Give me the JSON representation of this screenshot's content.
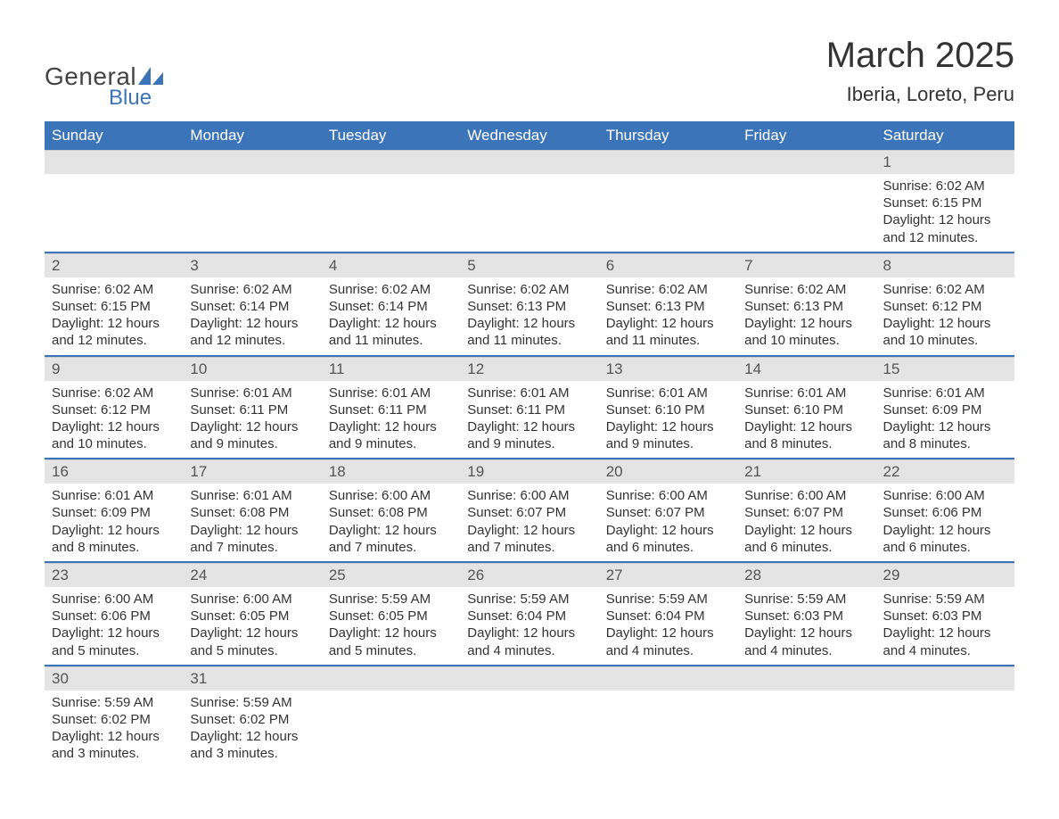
{
  "logo": {
    "text1": "General",
    "text2": "Blue",
    "brand_color": "#3b74b9"
  },
  "title": "March 2025",
  "location": "Iberia, Loreto, Peru",
  "colors": {
    "header_bg": "#3b74b9",
    "header_fg": "#ffffff",
    "daynum_bg": "#e4e4e4",
    "row_border": "#3b74b9",
    "text": "#333333",
    "body_bg": "#ffffff"
  },
  "day_headers": [
    "Sunday",
    "Monday",
    "Tuesday",
    "Wednesday",
    "Thursday",
    "Friday",
    "Saturday"
  ],
  "weeks": [
    [
      null,
      null,
      null,
      null,
      null,
      null,
      {
        "n": "1",
        "sunrise": "Sunrise: 6:02 AM",
        "sunset": "Sunset: 6:15 PM",
        "daylight": "Daylight: 12 hours and 12 minutes."
      }
    ],
    [
      {
        "n": "2",
        "sunrise": "Sunrise: 6:02 AM",
        "sunset": "Sunset: 6:15 PM",
        "daylight": "Daylight: 12 hours and 12 minutes."
      },
      {
        "n": "3",
        "sunrise": "Sunrise: 6:02 AM",
        "sunset": "Sunset: 6:14 PM",
        "daylight": "Daylight: 12 hours and 12 minutes."
      },
      {
        "n": "4",
        "sunrise": "Sunrise: 6:02 AM",
        "sunset": "Sunset: 6:14 PM",
        "daylight": "Daylight: 12 hours and 11 minutes."
      },
      {
        "n": "5",
        "sunrise": "Sunrise: 6:02 AM",
        "sunset": "Sunset: 6:13 PM",
        "daylight": "Daylight: 12 hours and 11 minutes."
      },
      {
        "n": "6",
        "sunrise": "Sunrise: 6:02 AM",
        "sunset": "Sunset: 6:13 PM",
        "daylight": "Daylight: 12 hours and 11 minutes."
      },
      {
        "n": "7",
        "sunrise": "Sunrise: 6:02 AM",
        "sunset": "Sunset: 6:13 PM",
        "daylight": "Daylight: 12 hours and 10 minutes."
      },
      {
        "n": "8",
        "sunrise": "Sunrise: 6:02 AM",
        "sunset": "Sunset: 6:12 PM",
        "daylight": "Daylight: 12 hours and 10 minutes."
      }
    ],
    [
      {
        "n": "9",
        "sunrise": "Sunrise: 6:02 AM",
        "sunset": "Sunset: 6:12 PM",
        "daylight": "Daylight: 12 hours and 10 minutes."
      },
      {
        "n": "10",
        "sunrise": "Sunrise: 6:01 AM",
        "sunset": "Sunset: 6:11 PM",
        "daylight": "Daylight: 12 hours and 9 minutes."
      },
      {
        "n": "11",
        "sunrise": "Sunrise: 6:01 AM",
        "sunset": "Sunset: 6:11 PM",
        "daylight": "Daylight: 12 hours and 9 minutes."
      },
      {
        "n": "12",
        "sunrise": "Sunrise: 6:01 AM",
        "sunset": "Sunset: 6:11 PM",
        "daylight": "Daylight: 12 hours and 9 minutes."
      },
      {
        "n": "13",
        "sunrise": "Sunrise: 6:01 AM",
        "sunset": "Sunset: 6:10 PM",
        "daylight": "Daylight: 12 hours and 9 minutes."
      },
      {
        "n": "14",
        "sunrise": "Sunrise: 6:01 AM",
        "sunset": "Sunset: 6:10 PM",
        "daylight": "Daylight: 12 hours and 8 minutes."
      },
      {
        "n": "15",
        "sunrise": "Sunrise: 6:01 AM",
        "sunset": "Sunset: 6:09 PM",
        "daylight": "Daylight: 12 hours and 8 minutes."
      }
    ],
    [
      {
        "n": "16",
        "sunrise": "Sunrise: 6:01 AM",
        "sunset": "Sunset: 6:09 PM",
        "daylight": "Daylight: 12 hours and 8 minutes."
      },
      {
        "n": "17",
        "sunrise": "Sunrise: 6:01 AM",
        "sunset": "Sunset: 6:08 PM",
        "daylight": "Daylight: 12 hours and 7 minutes."
      },
      {
        "n": "18",
        "sunrise": "Sunrise: 6:00 AM",
        "sunset": "Sunset: 6:08 PM",
        "daylight": "Daylight: 12 hours and 7 minutes."
      },
      {
        "n": "19",
        "sunrise": "Sunrise: 6:00 AM",
        "sunset": "Sunset: 6:07 PM",
        "daylight": "Daylight: 12 hours and 7 minutes."
      },
      {
        "n": "20",
        "sunrise": "Sunrise: 6:00 AM",
        "sunset": "Sunset: 6:07 PM",
        "daylight": "Daylight: 12 hours and 6 minutes."
      },
      {
        "n": "21",
        "sunrise": "Sunrise: 6:00 AM",
        "sunset": "Sunset: 6:07 PM",
        "daylight": "Daylight: 12 hours and 6 minutes."
      },
      {
        "n": "22",
        "sunrise": "Sunrise: 6:00 AM",
        "sunset": "Sunset: 6:06 PM",
        "daylight": "Daylight: 12 hours and 6 minutes."
      }
    ],
    [
      {
        "n": "23",
        "sunrise": "Sunrise: 6:00 AM",
        "sunset": "Sunset: 6:06 PM",
        "daylight": "Daylight: 12 hours and 5 minutes."
      },
      {
        "n": "24",
        "sunrise": "Sunrise: 6:00 AM",
        "sunset": "Sunset: 6:05 PM",
        "daylight": "Daylight: 12 hours and 5 minutes."
      },
      {
        "n": "25",
        "sunrise": "Sunrise: 5:59 AM",
        "sunset": "Sunset: 6:05 PM",
        "daylight": "Daylight: 12 hours and 5 minutes."
      },
      {
        "n": "26",
        "sunrise": "Sunrise: 5:59 AM",
        "sunset": "Sunset: 6:04 PM",
        "daylight": "Daylight: 12 hours and 4 minutes."
      },
      {
        "n": "27",
        "sunrise": "Sunrise: 5:59 AM",
        "sunset": "Sunset: 6:04 PM",
        "daylight": "Daylight: 12 hours and 4 minutes."
      },
      {
        "n": "28",
        "sunrise": "Sunrise: 5:59 AM",
        "sunset": "Sunset: 6:03 PM",
        "daylight": "Daylight: 12 hours and 4 minutes."
      },
      {
        "n": "29",
        "sunrise": "Sunrise: 5:59 AM",
        "sunset": "Sunset: 6:03 PM",
        "daylight": "Daylight: 12 hours and 4 minutes."
      }
    ],
    [
      {
        "n": "30",
        "sunrise": "Sunrise: 5:59 AM",
        "sunset": "Sunset: 6:02 PM",
        "daylight": "Daylight: 12 hours and 3 minutes."
      },
      {
        "n": "31",
        "sunrise": "Sunrise: 5:59 AM",
        "sunset": "Sunset: 6:02 PM",
        "daylight": "Daylight: 12 hours and 3 minutes."
      },
      null,
      null,
      null,
      null,
      null
    ]
  ]
}
